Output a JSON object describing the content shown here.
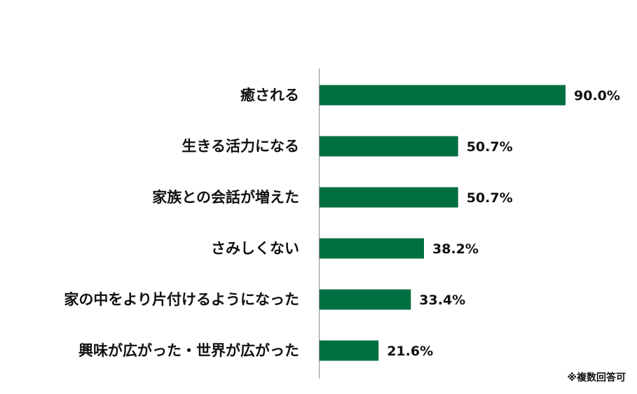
{
  "chart_data": {
    "type": "bar",
    "orientation": "horizontal",
    "categories": [
      "癒される",
      "生きる活力になる",
      "家族との会話が増えた",
      "さみしくない",
      "家の中をより片付けるようになった",
      "興味が広がった・世界が広がった"
    ],
    "values": [
      90.0,
      50.7,
      50.7,
      38.2,
      33.4,
      21.6
    ],
    "value_labels": [
      "90.0%",
      "50.7%",
      "50.7%",
      "38.2%",
      "33.4%",
      "21.6%"
    ],
    "bar_color": "#006F41",
    "axis_color": "#8C8C8C",
    "xlim": [
      0,
      100
    ],
    "grid": false,
    "title": "",
    "xlabel": "",
    "ylabel": ""
  },
  "footnote": "※複数回答可"
}
